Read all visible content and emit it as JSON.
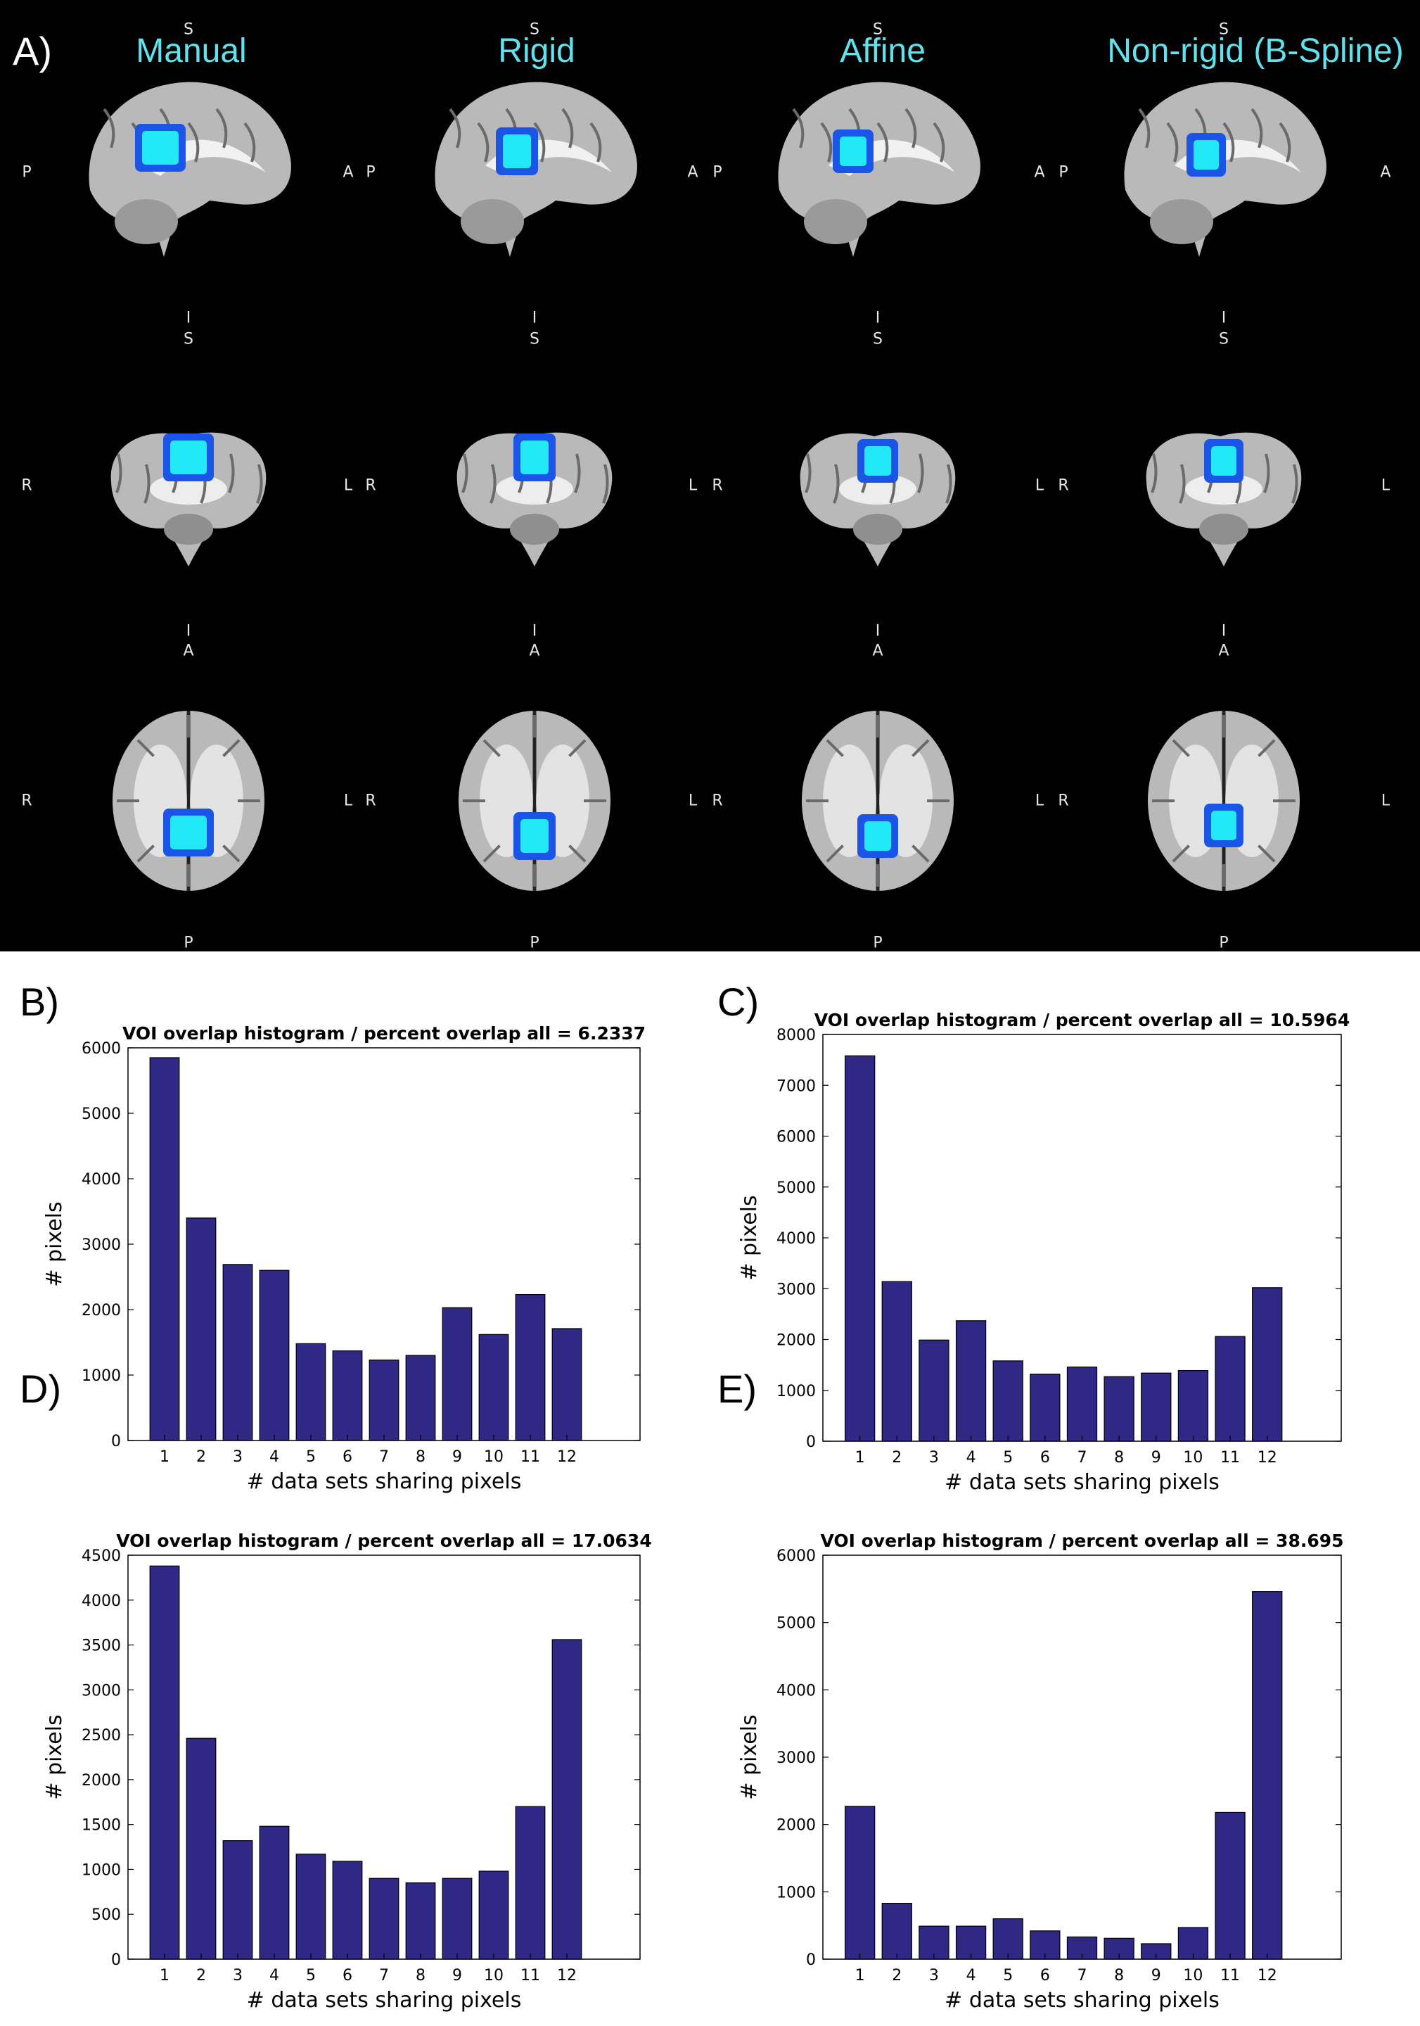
{
  "panel_a": {
    "label": "A)",
    "methods": [
      "Manual",
      "Rigid",
      "Affine",
      "Non-rigid (B-Spline)"
    ],
    "views": [
      {
        "name": "sagittal",
        "top": "S",
        "bottom": "I",
        "left": "P",
        "right": "A"
      },
      {
        "name": "coronal",
        "top": "S",
        "bottom": "I",
        "left": "R",
        "right": "L"
      },
      {
        "name": "axial",
        "top": "A",
        "bottom": "P",
        "left": "R",
        "right": "L"
      }
    ],
    "colors": {
      "background": "#000000",
      "title": "#5fe3ef",
      "voi_core": "#22e8f5",
      "voi_edge": "#1a55e8",
      "brain": "#b9b9b9"
    }
  },
  "chart_data": [
    {
      "panel": "B)",
      "type": "bar",
      "title": "VOI overlap histogram / percent overlap all = 6.2337",
      "xlabel": "# data sets sharing pixels",
      "ylabel": "# pixels",
      "categories": [
        "1",
        "2",
        "3",
        "4",
        "5",
        "6",
        "7",
        "8",
        "9",
        "10",
        "11",
        "12"
      ],
      "values": [
        5850,
        3400,
        2690,
        2600,
        1480,
        1370,
        1230,
        1300,
        2030,
        1620,
        2230,
        1710
      ],
      "ylim": [
        0,
        6000
      ],
      "yticks": [
        "0",
        "1000",
        "2000",
        "3000",
        "4000",
        "5000",
        "6000"
      ],
      "bar_color": "#2f2884"
    },
    {
      "panel": "C)",
      "type": "bar",
      "title": "VOI overlap histogram / percent overlap all = 10.5964",
      "xlabel": "# data sets sharing pixels",
      "ylabel": "# pixels",
      "categories": [
        "1",
        "2",
        "3",
        "4",
        "5",
        "6",
        "7",
        "8",
        "9",
        "10",
        "11",
        "12"
      ],
      "values": [
        7580,
        3140,
        1990,
        2370,
        1580,
        1320,
        1460,
        1270,
        1340,
        1390,
        2060,
        3020
      ],
      "ylim": [
        0,
        8000
      ],
      "yticks": [
        "0",
        "1000",
        "2000",
        "3000",
        "4000",
        "5000",
        "6000",
        "7000",
        "8000"
      ],
      "bar_color": "#2f2884"
    },
    {
      "panel": "D)",
      "type": "bar",
      "title": "VOI overlap histogram / percent overlap all = 17.0634",
      "xlabel": "# data sets sharing pixels",
      "ylabel": "# pixels",
      "categories": [
        "1",
        "2",
        "3",
        "4",
        "5",
        "6",
        "7",
        "8",
        "9",
        "10",
        "11",
        "12"
      ],
      "values": [
        4380,
        2460,
        1320,
        1480,
        1170,
        1090,
        900,
        850,
        900,
        980,
        1700,
        3560
      ],
      "ylim": [
        0,
        4500
      ],
      "yticks": [
        "0",
        "500",
        "1000",
        "1500",
        "2000",
        "2500",
        "3000",
        "3500",
        "4000",
        "4500"
      ],
      "bar_color": "#2f2884"
    },
    {
      "panel": "E)",
      "type": "bar",
      "title": "VOI overlap histogram / percent overlap all = 38.695",
      "xlabel": "# data sets sharing pixels",
      "ylabel": "# pixels",
      "categories": [
        "1",
        "2",
        "3",
        "4",
        "5",
        "6",
        "7",
        "8",
        "9",
        "10",
        "11",
        "12"
      ],
      "values": [
        2270,
        830,
        490,
        490,
        600,
        420,
        330,
        310,
        230,
        470,
        2180,
        5460
      ],
      "ylim": [
        0,
        6000
      ],
      "yticks": [
        "0",
        "1000",
        "2000",
        "3000",
        "4000",
        "5000",
        "6000"
      ],
      "bar_color": "#2f2884"
    }
  ]
}
